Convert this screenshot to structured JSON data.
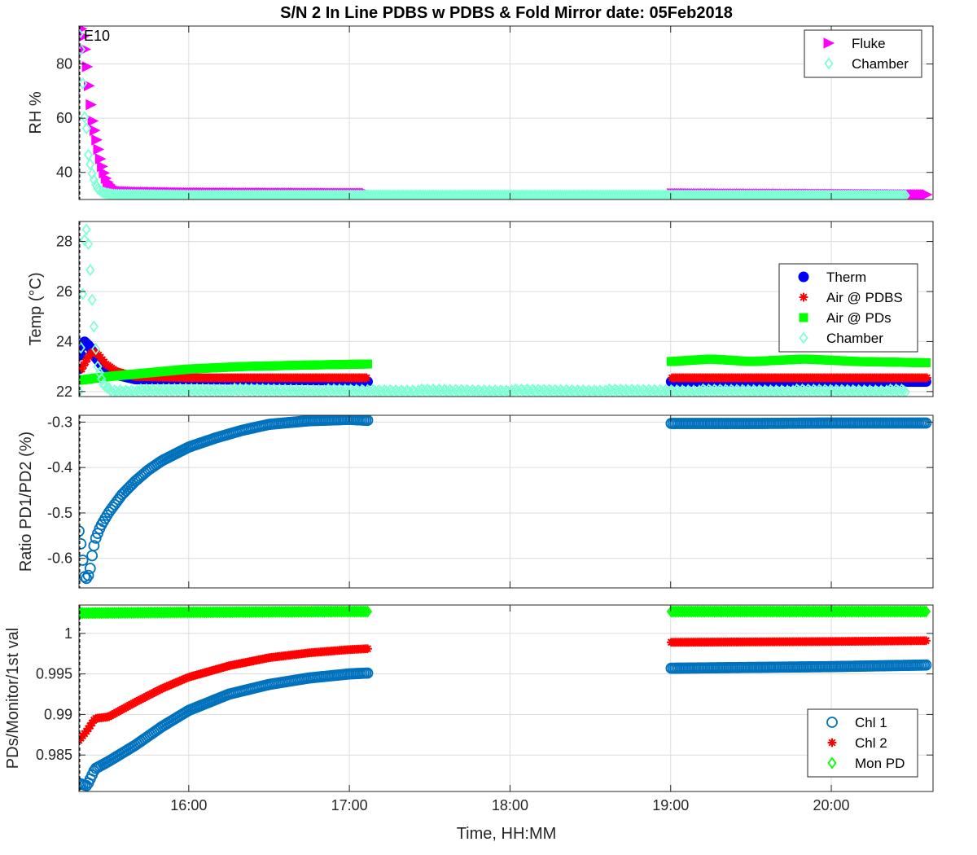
{
  "chart_data": {
    "type": "scatter",
    "title": "S/N 2 In Line PDBS w PDBS & Fold Mirror date: 05Feb2018",
    "xlabel": "Time, HH:MM",
    "x_ticks": [
      "16:00",
      "17:00",
      "18:00",
      "19:00",
      "20:00"
    ],
    "xlim": [
      "15:19",
      "20:38"
    ],
    "grid": true,
    "colors": {
      "fluke": "#ff00ff",
      "chamber": "#7fffd4",
      "therm": "#0000ff",
      "air_pdbs": "#ff0000",
      "air_pds": "#00ff00",
      "chl1": "#0072bd",
      "chl2": "#ff0000",
      "mon_pd": "#00ff00"
    },
    "panels": [
      {
        "id": "rh",
        "ylabel": "RH %",
        "ylim": [
          30,
          94
        ],
        "yticks": [
          40,
          60,
          80
        ],
        "annotation": "E10",
        "legend_location": "top-right",
        "series": [
          {
            "name": "Fluke",
            "marker": "triangle-right",
            "color": "#ff00ff",
            "points": [
              [
                "15:20",
                93
              ],
              [
                "15:21",
                89
              ],
              [
                "15:22",
                80
              ],
              [
                "15:23",
                70
              ],
              [
                "15:24",
                60
              ],
              [
                "15:25",
                55
              ],
              [
                "15:26",
                50
              ],
              [
                "15:27",
                45
              ],
              [
                "15:28",
                41
              ],
              [
                "15:29",
                38
              ],
              [
                "15:30",
                36
              ],
              [
                "15:32",
                34
              ],
              [
                "15:35",
                33
              ],
              [
                "15:40",
                32.8
              ],
              [
                "16:00",
                32.5
              ],
              [
                "17:00",
                32.3
              ],
              [
                "17:06",
                32.3
              ],
              [
                "19:00",
                32.2
              ],
              [
                "20:00",
                32.0
              ],
              [
                "20:36",
                31.8
              ]
            ]
          },
          {
            "name": "Chamber",
            "marker": "diamond",
            "color": "#7fffd4",
            "points": [
              [
                "15:19",
                91
              ],
              [
                "15:20",
                83
              ],
              [
                "15:20",
                76
              ],
              [
                "15:21",
                68
              ],
              [
                "15:21",
                61
              ],
              [
                "15:22",
                55
              ],
              [
                "15:22",
                49
              ],
              [
                "15:23",
                44
              ],
              [
                "15:24",
                39
              ],
              [
                "15:25",
                36
              ],
              [
                "15:26",
                34
              ],
              [
                "15:28",
                32.5
              ],
              [
                "15:32",
                31.8
              ],
              [
                "16:00",
                31.5
              ],
              [
                "17:00",
                31.5
              ],
              [
                "18:00",
                31.5
              ],
              [
                "19:00",
                31.5
              ],
              [
                "20:00",
                31.5
              ],
              [
                "20:28",
                31.5
              ]
            ]
          }
        ]
      },
      {
        "id": "temp",
        "ylabel": "Temp (°C)",
        "ylim": [
          21.8,
          28.8
        ],
        "yticks": [
          22,
          24,
          26,
          28
        ],
        "legend_location": "right",
        "series": [
          {
            "name": "Therm",
            "marker": "filled-circle",
            "color": "#0000ff",
            "points": [
              [
                "15:19",
                22.9
              ],
              [
                "15:20",
                23.7
              ],
              [
                "15:21",
                24.0
              ],
              [
                "15:23",
                23.8
              ],
              [
                "15:25",
                23.4
              ],
              [
                "15:28",
                23.0
              ],
              [
                "15:32",
                22.7
              ],
              [
                "15:40",
                22.5
              ],
              [
                "16:00",
                22.5
              ],
              [
                "17:00",
                22.45
              ],
              [
                "17:06",
                22.4
              ],
              [
                "19:00",
                22.4
              ],
              [
                "20:00",
                22.4
              ],
              [
                "20:36",
                22.4
              ]
            ]
          },
          {
            "name": "Air @ PDBS",
            "marker": "asterisk",
            "color": "#ff0000",
            "points": [
              [
                "15:20",
                22.9
              ],
              [
                "15:22",
                23.3
              ],
              [
                "15:24",
                23.6
              ],
              [
                "15:26",
                23.5
              ],
              [
                "15:29",
                23.1
              ],
              [
                "15:33",
                22.8
              ],
              [
                "15:40",
                22.6
              ],
              [
                "16:00",
                22.55
              ],
              [
                "17:00",
                22.55
              ],
              [
                "17:06",
                22.55
              ],
              [
                "19:00",
                22.55
              ],
              [
                "20:00",
                22.55
              ],
              [
                "20:36",
                22.55
              ]
            ]
          },
          {
            "name": "Air @ PDs",
            "marker": "filled-square",
            "color": "#00ff00",
            "points": [
              [
                "15:19",
                22.45
              ],
              [
                "15:30",
                22.6
              ],
              [
                "15:45",
                22.75
              ],
              [
                "16:00",
                22.9
              ],
              [
                "16:20",
                23.0
              ],
              [
                "16:40",
                23.05
              ],
              [
                "17:06",
                23.1
              ],
              [
                "19:00",
                23.2
              ],
              [
                "19:15",
                23.3
              ],
              [
                "19:30",
                23.2
              ],
              [
                "19:50",
                23.3
              ],
              [
                "20:10",
                23.2
              ],
              [
                "20:36",
                23.15
              ]
            ]
          },
          {
            "name": "Chamber",
            "marker": "diamond",
            "color": "#7fffd4",
            "points": [
              [
                "15:19",
                22.0
              ],
              [
                "15:20",
                24.5
              ],
              [
                "15:21",
                28.0
              ],
              [
                "15:22",
                28.6
              ],
              [
                "15:23",
                27.2
              ],
              [
                "15:24",
                25.5
              ],
              [
                "15:25",
                24.0
              ],
              [
                "15:26",
                23.0
              ],
              [
                "15:28",
                22.3
              ],
              [
                "15:31",
                22.0
              ],
              [
                "15:40",
                22.0
              ],
              [
                "16:00",
                22.05
              ],
              [
                "17:00",
                22.0
              ],
              [
                "18:00",
                22.0
              ],
              [
                "19:00",
                22.0
              ],
              [
                "20:00",
                22.0
              ],
              [
                "20:28",
                22.0
              ]
            ]
          }
        ]
      },
      {
        "id": "ratio",
        "ylabel": "Ratio PD1/PD2 (%)",
        "ylim": [
          -0.665,
          -0.285
        ],
        "yticks": [
          -0.3,
          -0.4,
          -0.5,
          -0.6
        ],
        "series": [
          {
            "name": "",
            "marker": "circle",
            "color": "#0072bd",
            "points": [
              [
                "15:19",
                -0.54
              ],
              [
                "15:20",
                -0.58
              ],
              [
                "15:21",
                -0.64
              ],
              [
                "15:22",
                -0.645
              ],
              [
                "15:23",
                -0.63
              ],
              [
                "15:24",
                -0.59
              ],
              [
                "15:25",
                -0.56
              ],
              [
                "15:27",
                -0.53
              ],
              [
                "15:30",
                -0.5
              ],
              [
                "15:35",
                -0.46
              ],
              [
                "15:40",
                -0.43
              ],
              [
                "15:45",
                -0.405
              ],
              [
                "15:50",
                -0.385
              ],
              [
                "16:00",
                -0.355
              ],
              [
                "16:10",
                -0.335
              ],
              [
                "16:20",
                -0.318
              ],
              [
                "16:30",
                -0.305
              ],
              [
                "16:45",
                -0.297
              ],
              [
                "17:00",
                -0.294
              ],
              [
                "17:06",
                -0.296
              ],
              [
                "19:00",
                -0.303
              ],
              [
                "19:30",
                -0.303
              ],
              [
                "20:00",
                -0.302
              ],
              [
                "20:36",
                -0.302
              ]
            ]
          }
        ]
      },
      {
        "id": "pds",
        "ylabel": "PDs/Monitor/1st val",
        "ylim": [
          0.9805,
          1.0035
        ],
        "yticks": [
          0.985,
          0.99,
          0.995,
          1
        ],
        "legend_location": "bottom-right",
        "series": [
          {
            "name": "Chl 1",
            "marker": "circle",
            "color": "#0072bd",
            "points": [
              [
                "15:19",
                0.9815
              ],
              [
                "15:22",
                0.9812
              ],
              [
                "15:25",
                0.9833
              ],
              [
                "15:30",
                0.9842
              ],
              [
                "15:40",
                0.9862
              ],
              [
                "15:50",
                0.9885
              ],
              [
                "16:00",
                0.9905
              ],
              [
                "16:15",
                0.9925
              ],
              [
                "16:30",
                0.9937
              ],
              [
                "16:45",
                0.9945
              ],
              [
                "17:00",
                0.995
              ],
              [
                "17:06",
                0.9951
              ],
              [
                "19:00",
                0.9957
              ],
              [
                "20:00",
                0.9959
              ],
              [
                "20:36",
                0.9961
              ]
            ]
          },
          {
            "name": "Chl 2",
            "marker": "asterisk",
            "color": "#ff0000",
            "points": [
              [
                "15:19",
                0.9868
              ],
              [
                "15:22",
                0.988
              ],
              [
                "15:25",
                0.9895
              ],
              [
                "15:30",
                0.9897
              ],
              [
                "15:40",
                0.9915
              ],
              [
                "15:50",
                0.9932
              ],
              [
                "16:00",
                0.9946
              ],
              [
                "16:15",
                0.996
              ],
              [
                "16:30",
                0.997
              ],
              [
                "16:45",
                0.9976
              ],
              [
                "17:00",
                0.998
              ],
              [
                "17:06",
                0.9981
              ],
              [
                "19:00",
                0.9989
              ],
              [
                "20:00",
                0.999
              ],
              [
                "20:36",
                0.9991
              ]
            ]
          },
          {
            "name": "Mon PD",
            "marker": "diamond",
            "color": "#00ff00",
            "points": [
              [
                "15:19",
                1.0025
              ],
              [
                "16:00",
                1.0026
              ],
              [
                "17:00",
                1.0027
              ],
              [
                "17:06",
                1.0027
              ],
              [
                "19:00",
                1.0027
              ],
              [
                "20:00",
                1.0027
              ],
              [
                "20:36",
                1.0027
              ]
            ]
          }
        ]
      }
    ]
  }
}
